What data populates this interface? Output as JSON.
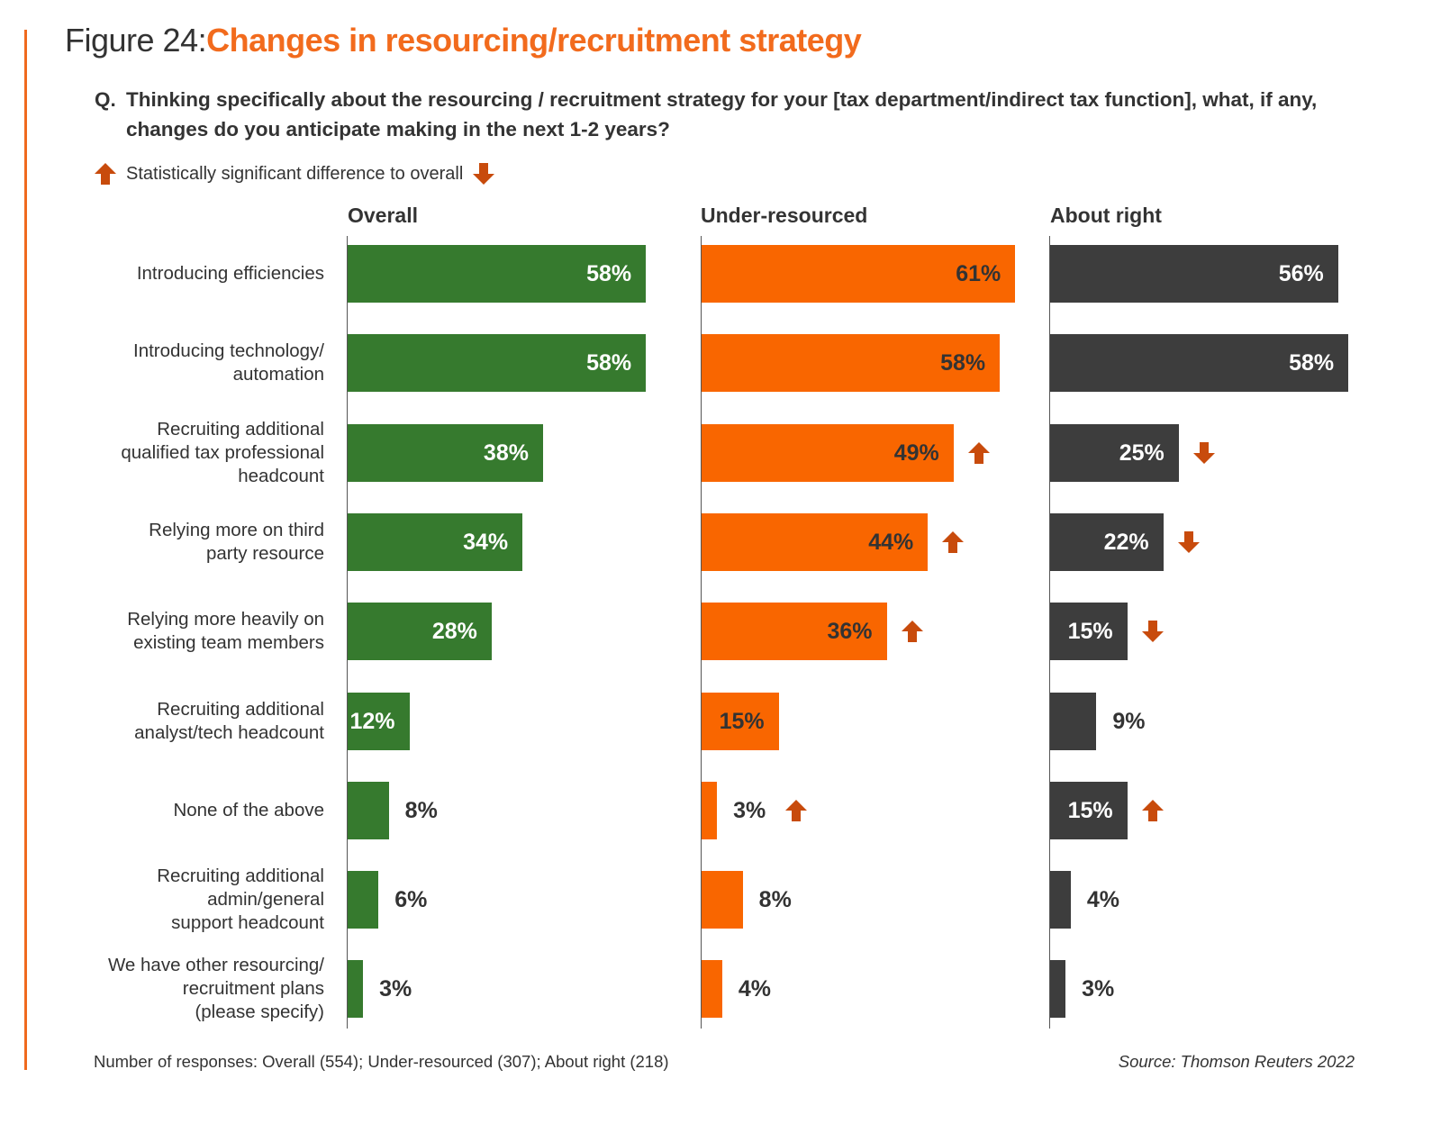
{
  "title_prefix": "Figure 24:",
  "title_main": "Changes in resourcing/recruitment strategy",
  "question_marker": "Q.",
  "question_text": "Thinking specifically about the resourcing / recruitment strategy for your [tax department/indirect tax function], what, if any, changes do you anticipate making in the next 1-2 years?",
  "legend_text": "Statistically significant difference to overall",
  "footer_responses": "Number of responses: Overall (554); Under-resourced (307); About right (218)",
  "footer_source": "Source: Thomson Reuters 2022",
  "colors": {
    "accent": "#f26b1d",
    "overall": "#367a2e",
    "under_resourced": "#f96600",
    "about_right": "#3d3d3d",
    "significance_arrow": "#c84b0c"
  },
  "chart_data": {
    "type": "bar",
    "orientation": "horizontal",
    "title": "Changes in resourcing/recruitment strategy",
    "value_unit": "%",
    "categories": [
      "Introducing efficiencies",
      "Introducing technology/ automation",
      "Recruiting additional qualified tax professional headcount",
      "Relying more on third party resource",
      "Relying more heavily on existing team members",
      "Recruiting additional analyst/tech headcount",
      "None of the above",
      "Recruiting additional admin/general support headcount",
      "We have other resourcing/ recruitment plans (please specify)"
    ],
    "category_lines": [
      [
        "Introducing efficiencies"
      ],
      [
        "Introducing technology/",
        "automation"
      ],
      [
        "Recruiting additional",
        "qualified tax professional",
        "headcount"
      ],
      [
        "Relying more on third",
        "party resource"
      ],
      [
        "Relying more heavily on",
        "existing team members"
      ],
      [
        "Recruiting additional",
        "analyst/tech headcount"
      ],
      [
        "None of the above"
      ],
      [
        "Recruiting additional",
        "admin/general",
        "support headcount"
      ],
      [
        "We have other resourcing/",
        "recruitment plans",
        "(please specify)"
      ]
    ],
    "series": [
      {
        "name": "Overall",
        "color": "#367a2e",
        "values": [
          58,
          58,
          38,
          34,
          28,
          12,
          8,
          6,
          3
        ],
        "significance": [
          "",
          "",
          "",
          "",
          "",
          "",
          "",
          "",
          ""
        ]
      },
      {
        "name": "Under-resourced",
        "color": "#f96600",
        "values": [
          61,
          58,
          49,
          44,
          36,
          15,
          3,
          8,
          4
        ],
        "significance": [
          "",
          "",
          "up",
          "up",
          "up",
          "",
          "up",
          "",
          ""
        ]
      },
      {
        "name": "About right",
        "color": "#3d3d3d",
        "values": [
          56,
          58,
          25,
          22,
          15,
          9,
          15,
          4,
          3
        ],
        "significance": [
          "",
          "",
          "down",
          "down",
          "down",
          "",
          "up",
          "",
          ""
        ]
      }
    ],
    "legend": "top-left",
    "grid": false,
    "xlim": [
      0,
      65
    ]
  }
}
